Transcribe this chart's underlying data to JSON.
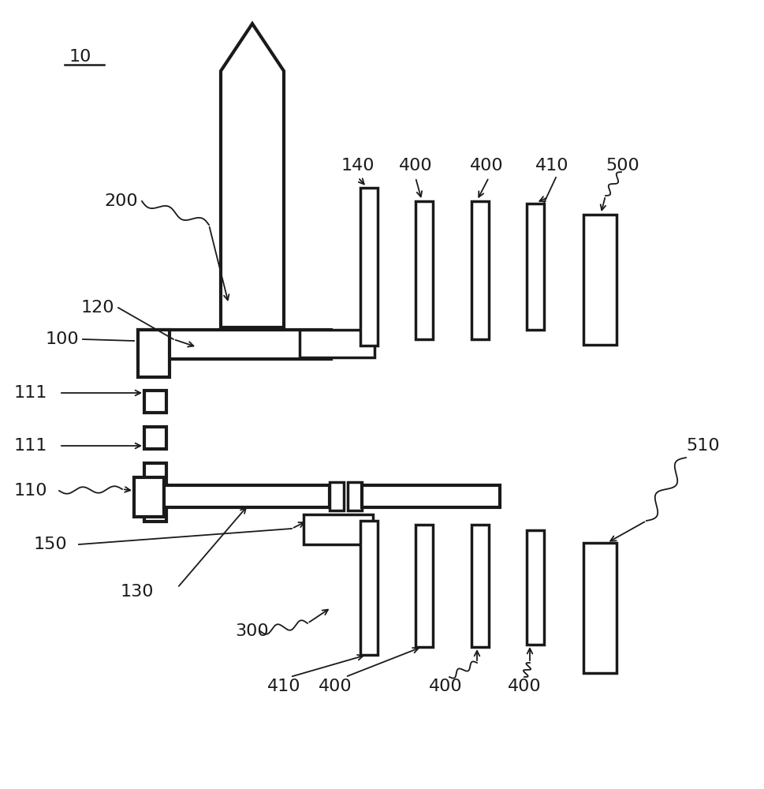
{
  "bg_color": "#ffffff",
  "line_color": "#1a1a1a",
  "lw": 2.5,
  "fig_width": 9.7,
  "fig_height": 10.0
}
